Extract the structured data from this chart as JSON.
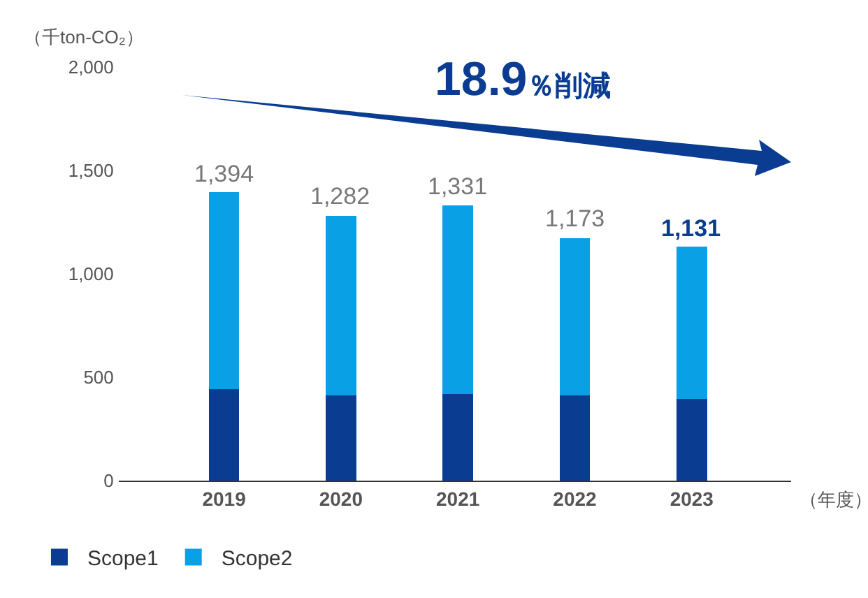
{
  "chart_data": {
    "type": "bar",
    "stacked": true,
    "categories": [
      "2019",
      "2020",
      "2021",
      "2022",
      "2023"
    ],
    "series": [
      {
        "name": "Scope1",
        "color": "#0a3d91",
        "values": [
          444,
          412,
          419,
          412,
          394
        ]
      },
      {
        "name": "Scope2",
        "color": "#0aa0e6",
        "values": [
          950,
          870,
          912,
          761,
          737
        ]
      }
    ],
    "totals": [
      "1,394",
      "1,282",
      "1,331",
      "1,173",
      "1,131"
    ],
    "ylabel": "（千ton-CO₂）",
    "xlabel": "（年度）",
    "ylim": [
      0,
      2000
    ],
    "yticks": [
      {
        "value": 0,
        "label": "0"
      },
      {
        "value": 500,
        "label": "500"
      },
      {
        "value": 1000,
        "label": "1,000"
      },
      {
        "value": 1500,
        "label": "1,500"
      },
      {
        "value": 2000,
        "label": "2,000"
      }
    ],
    "legend": "bottom left",
    "annotations": [
      "18.9％削減"
    ]
  }
}
